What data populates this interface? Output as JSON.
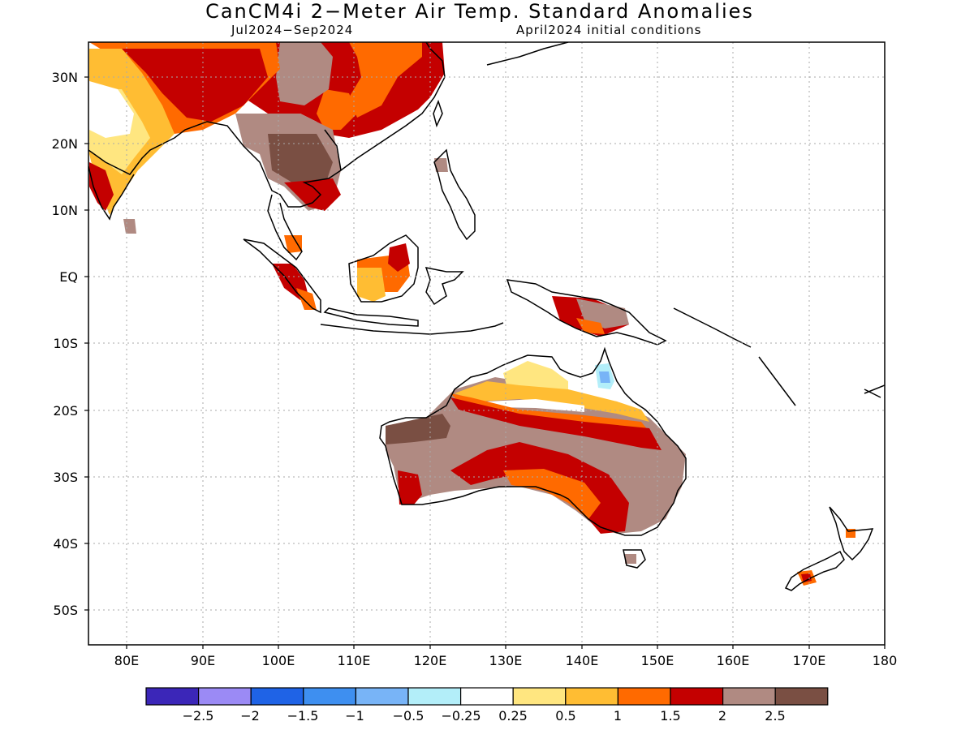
{
  "title": "CanCM4i 2−Meter Air Temp. Standard Anomalies",
  "period": "Jul2024−Sep2024",
  "initial_conditions": "April2024 initial conditions",
  "lat_ticks": [
    "30N",
    "20N",
    "10N",
    "EQ",
    "10S",
    "20S",
    "30S",
    "40S",
    "50S"
  ],
  "lon_ticks": [
    "80E",
    "90E",
    "100E",
    "110E",
    "120E",
    "130E",
    "140E",
    "150E",
    "160E",
    "170E",
    "180"
  ],
  "colorbar": {
    "colors": [
      "#3b26b8",
      "#9b8af5",
      "#1f63e6",
      "#3e8ff0",
      "#78b4f7",
      "#b3eef9",
      "#ffffff",
      "#ffe680",
      "#ffbd33",
      "#ff6a00",
      "#c40000",
      "#b08a82",
      "#7a4f43"
    ],
    "labels": [
      "−2.5",
      "−2",
      "−1.5",
      "−1",
      "−0.5",
      "−0.25",
      "0.25",
      "0.5",
      "1",
      "1.5",
      "2",
      "2.5"
    ]
  }
}
